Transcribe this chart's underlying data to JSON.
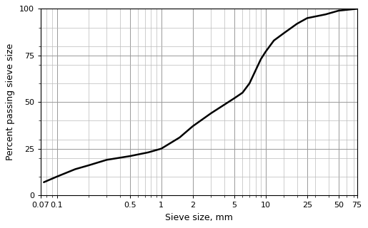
{
  "x_data": [
    0.075,
    0.1,
    0.15,
    0.2,
    0.3,
    0.5,
    0.75,
    1.0,
    1.5,
    2.0,
    3.0,
    5.0,
    6.0,
    7.0,
    9.0,
    10.0,
    12.0,
    15.0,
    20.0,
    25.0,
    37.5,
    50.0,
    75.0
  ],
  "y_data": [
    7,
    10,
    14,
    16,
    19,
    21,
    23,
    25,
    31,
    37,
    44,
    52,
    55,
    60,
    73,
    77,
    83,
    87,
    92,
    95,
    97,
    99,
    100
  ],
  "x_ticks": [
    0.07,
    0.1,
    0.5,
    1,
    2,
    5,
    10,
    25,
    50,
    75
  ],
  "x_tick_labels": [
    "0.07",
    "0.1",
    "0.5",
    "1",
    "2",
    "5",
    "10",
    "25",
    "50",
    "75"
  ],
  "x_minor_ticks": [
    0.08,
    0.09,
    0.2,
    0.3,
    0.4,
    0.6,
    0.7,
    0.8,
    0.9,
    3,
    4,
    6,
    7,
    8,
    9,
    15,
    20,
    30,
    40,
    60,
    70
  ],
  "y_ticks": [
    0,
    25,
    50,
    75,
    100
  ],
  "y_minor_ticks": [
    10,
    20,
    30,
    40,
    60,
    70,
    80,
    90
  ],
  "xlabel": "Sieve size, mm",
  "ylabel": "Percent passing sieve size",
  "ylim": [
    0,
    100
  ],
  "line_color": "#000000",
  "line_width": 1.8,
  "grid_color_major": "#999999",
  "grid_color_minor": "#bbbbbb",
  "bg_color": "#ffffff",
  "font_size_label": 9,
  "font_size_tick": 8
}
